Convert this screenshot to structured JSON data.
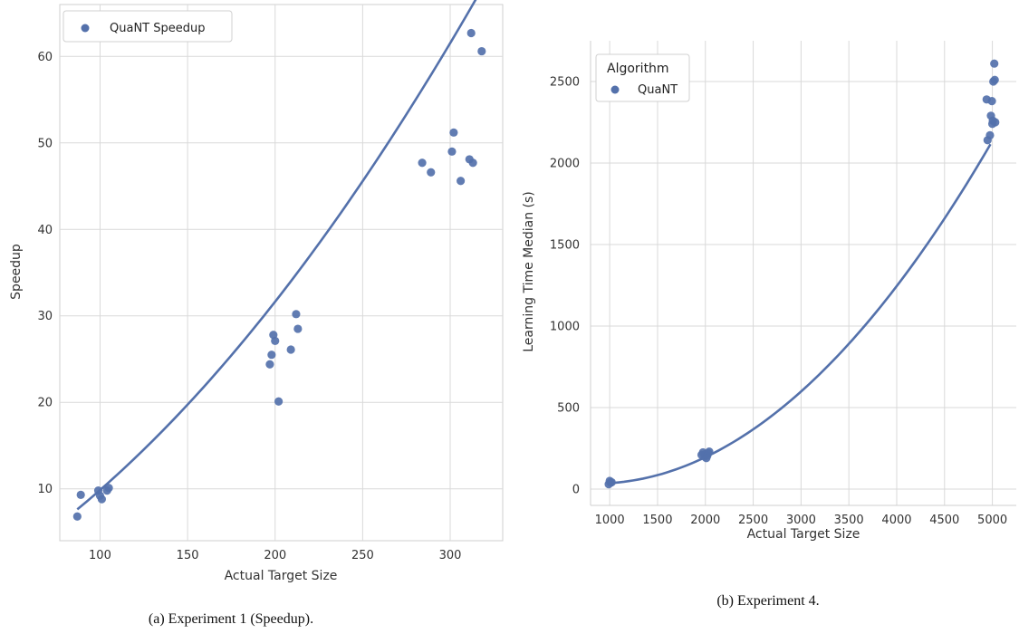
{
  "chart_data": [
    {
      "type": "scatter",
      "xlabel": "Actual Target Size",
      "ylabel": "Speedup",
      "xlim": [
        77,
        330
      ],
      "ylim": [
        4,
        66
      ],
      "xticks": [
        100,
        150,
        200,
        250,
        300
      ],
      "yticks": [
        10,
        20,
        30,
        40,
        50,
        60
      ],
      "grid": true,
      "legend_position": "top-left",
      "caption": "(a) Experiment 1 (Speedup).",
      "color": "#5471ab",
      "series": [
        {
          "name": "QuaNT Speedup",
          "x": [
            87,
            89,
            99,
            100,
            101,
            104,
            105,
            197,
            198,
            199,
            200,
            202,
            209,
            212,
            213,
            284,
            289,
            301,
            302,
            306,
            311,
            312,
            313,
            318
          ],
          "y": [
            6.8,
            9.3,
            9.8,
            9.2,
            8.8,
            9.8,
            10.1,
            24.4,
            25.5,
            27.8,
            27.1,
            20.1,
            26.1,
            30.2,
            28.5,
            47.7,
            46.6,
            49.0,
            51.2,
            45.6,
            48.1,
            62.7,
            47.7,
            60.6
          ]
        }
      ],
      "fit": {
        "x": [
          87,
          318
        ],
        "a": 0.000406,
        "b": 0.096,
        "c": -3.8
      }
    },
    {
      "type": "scatter",
      "xlabel": "Actual Target Size",
      "ylabel": "Learning Time Median (s)",
      "xlim": [
        800,
        5250
      ],
      "ylim": [
        -100,
        2750
      ],
      "xticks": [
        1000,
        1500,
        2000,
        2500,
        3000,
        3500,
        4000,
        4500,
        5000
      ],
      "yticks": [
        0,
        500,
        1000,
        1500,
        2000,
        2500
      ],
      "grid": true,
      "legend_position": "top-left",
      "legend_title": "Algorithm",
      "caption": "(b) Experiment 4.",
      "color": "#5471ab",
      "series": [
        {
          "name": "QuaNT",
          "x": [
            990,
            1000,
            1010,
            1020,
            1960,
            1975,
            1990,
            2000,
            2010,
            2020,
            2030,
            2040,
            4940,
            4950,
            4975,
            4985,
            4995,
            5000,
            5005,
            5010,
            5020,
            5025,
            5030
          ],
          "y": [
            30,
            50,
            40,
            42,
            210,
            225,
            200,
            215,
            190,
            205,
            220,
            230,
            2390,
            2140,
            2170,
            2290,
            2380,
            2240,
            2260,
            2500,
            2610,
            2510,
            2250
          ]
        }
      ],
      "fit": {
        "x": [
          1000,
          4980
        ],
        "a": 0.0001219,
        "b": -0.2067,
        "c": 121.4
      }
    }
  ]
}
